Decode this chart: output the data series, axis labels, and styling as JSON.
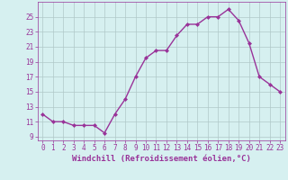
{
  "x": [
    0,
    1,
    2,
    3,
    4,
    5,
    6,
    7,
    8,
    9,
    10,
    11,
    12,
    13,
    14,
    15,
    16,
    17,
    18,
    19,
    20,
    21,
    22,
    23
  ],
  "y": [
    12,
    11,
    11,
    10.5,
    10.5,
    10.5,
    9.5,
    12,
    14,
    17,
    19.5,
    20.5,
    20.5,
    22.5,
    24,
    24,
    25,
    25,
    26,
    24.5,
    21.5,
    17,
    16,
    15
  ],
  "line_color": "#993399",
  "marker": "D",
  "marker_size": 2,
  "xlabel": "Windchill (Refroidissement éolien,°C)",
  "xlabel_fontsize": 6.5,
  "ylabel_ticks": [
    9,
    11,
    13,
    15,
    17,
    19,
    21,
    23,
    25
  ],
  "xtick_labels": [
    "0",
    "1",
    "2",
    "3",
    "4",
    "5",
    "6",
    "7",
    "8",
    "9",
    "10",
    "11",
    "12",
    "13",
    "14",
    "15",
    "16",
    "17",
    "18",
    "19",
    "20",
    "21",
    "22",
    "23"
  ],
  "ylim": [
    8.5,
    27
  ],
  "xlim": [
    -0.5,
    23.5
  ],
  "background_color": "#d6f0f0",
  "grid_color": "#b0c8c8",
  "tick_color": "#993399",
  "tick_fontsize": 5.5,
  "line_width": 1.0
}
